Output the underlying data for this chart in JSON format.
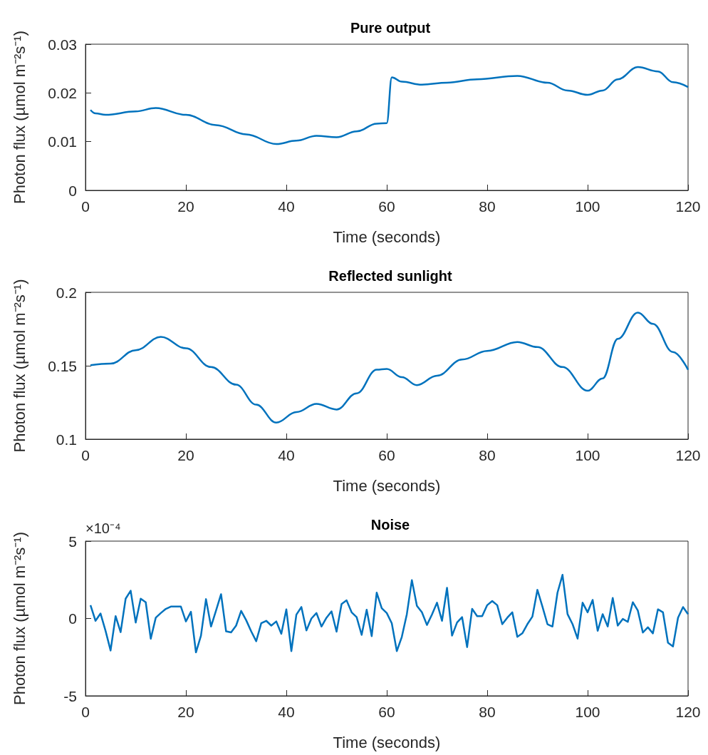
{
  "chart_data": [
    {
      "type": "line",
      "title": "Pure output",
      "xlabel": "Time (seconds)",
      "ylabel": "Photon flux (µmol m⁻²s⁻¹)",
      "color": "#0072bd",
      "grid": false,
      "marker": "none",
      "xlim": [
        0,
        120
      ],
      "xticks": [
        0,
        20,
        40,
        60,
        80,
        100,
        120
      ],
      "ylim": [
        0,
        0.03
      ],
      "yticks": [
        0,
        0.01,
        0.02,
        0.03
      ],
      "x": [
        1,
        2,
        4,
        10,
        14,
        20,
        26,
        32,
        38,
        42,
        46,
        50,
        54,
        58,
        60,
        61,
        63,
        67,
        72,
        78,
        86,
        92,
        96,
        100,
        103,
        106,
        110,
        114,
        117,
        120
      ],
      "values": [
        0.0165,
        0.0158,
        0.0155,
        0.0162,
        0.0169,
        0.0155,
        0.0134,
        0.0115,
        0.0095,
        0.0102,
        0.0112,
        0.0109,
        0.0121,
        0.0137,
        0.0138,
        0.0232,
        0.0223,
        0.0217,
        0.0221,
        0.0228,
        0.0235,
        0.0221,
        0.0205,
        0.0196,
        0.0205,
        0.0228,
        0.0253,
        0.0244,
        0.0222,
        0.0212
      ]
    },
    {
      "type": "line",
      "title": "Reflected sunlight",
      "xlabel": "Time (seconds)",
      "ylabel": "Photon flux (µmol m⁻²s⁻¹)",
      "color": "#0072bd",
      "grid": false,
      "marker": "none",
      "xlim": [
        0,
        120
      ],
      "xticks": [
        0,
        20,
        40,
        60,
        80,
        100,
        120
      ],
      "ylim": [
        0.1,
        0.2
      ],
      "yticks": [
        0.1,
        0.15,
        0.2
      ],
      "x": [
        1,
        5,
        10,
        15,
        20,
        25,
        30,
        34,
        38,
        42,
        46,
        50,
        54,
        58,
        60,
        63,
        66,
        70,
        75,
        80,
        86,
        90,
        95,
        100,
        103,
        106,
        110,
        113,
        117,
        120
      ],
      "values": [
        0.1504,
        0.1514,
        0.1606,
        0.1696,
        0.1619,
        0.1491,
        0.1371,
        0.1235,
        0.1113,
        0.1184,
        0.124,
        0.1202,
        0.1312,
        0.1473,
        0.1478,
        0.1422,
        0.1368,
        0.1432,
        0.1542,
        0.1601,
        0.1662,
        0.1627,
        0.1491,
        0.133,
        0.1414,
        0.1683,
        0.1862,
        0.1785,
        0.1593,
        0.1473
      ]
    },
    {
      "type": "line",
      "title": "Noise",
      "xlabel": "Time (seconds)",
      "ylabel": "Photon flux (µmol m⁻²s⁻¹)",
      "annotations": [
        "×10⁻⁴"
      ],
      "color": "#0072bd",
      "grid": false,
      "marker": "none",
      "xlim": [
        0,
        120
      ],
      "xticks": [
        0,
        20,
        40,
        60,
        80,
        100,
        120
      ],
      "ylim": [
        -5,
        5
      ],
      "yticks": [
        -5,
        0,
        5
      ],
      "x": [
        1,
        2,
        3,
        4,
        5,
        6,
        7,
        8,
        9,
        10,
        11,
        12,
        13,
        14,
        15,
        16,
        17,
        18,
        19,
        20,
        21,
        22,
        23,
        24,
        25,
        26,
        27,
        28,
        29,
        30,
        31,
        32,
        33,
        34,
        35,
        36,
        37,
        38,
        39,
        40,
        41,
        42,
        43,
        44,
        45,
        46,
        47,
        48,
        49,
        50,
        51,
        52,
        53,
        54,
        55,
        56,
        57,
        58,
        59,
        60,
        61,
        62,
        63,
        64,
        65,
        66,
        67,
        68,
        69,
        70,
        71,
        72,
        73,
        74,
        75,
        76,
        77,
        78,
        79,
        80,
        81,
        82,
        83,
        84,
        85,
        86,
        87,
        88,
        89,
        90,
        91,
        92,
        93,
        94,
        95,
        96,
        97,
        98,
        99,
        100,
        101,
        102,
        103,
        104,
        105,
        106,
        107,
        108,
        109,
        110,
        111,
        112,
        113,
        114,
        115,
        116,
        117,
        118,
        119,
        120
      ],
      "values": [
        0.86,
        -0.15,
        0.32,
        -0.8,
        -2.07,
        0.15,
        -0.88,
        1.28,
        1.79,
        -0.26,
        1.28,
        1.05,
        -1.31,
        0.05,
        0.35,
        0.62,
        0.77,
        0.77,
        0.77,
        -0.19,
        0.43,
        -2.19,
        -1.11,
        1.25,
        -0.52,
        0.51,
        1.57,
        -0.83,
        -0.9,
        -0.46,
        0.49,
        -0.11,
        -0.83,
        -1.47,
        -0.31,
        -0.15,
        -0.46,
        -0.19,
        -0.99,
        0.59,
        -2.11,
        0.25,
        0.74,
        -0.77,
        0,
        0.35,
        -0.52,
        0.05,
        0.46,
        -0.85,
        0.93,
        1.17,
        0.4,
        0.09,
        -1.06,
        0.56,
        -1.14,
        1.67,
        0.66,
        0.35,
        -0.31,
        -2.11,
        -1.19,
        0.28,
        2.48,
        0.82,
        0.4,
        -0.42,
        0.25,
        1.02,
        -0.15,
        1.98,
        -1.11,
        -0.26,
        0.09,
        -1.85,
        0.62,
        0.15,
        0.15,
        0.86,
        1.13,
        0.86,
        -0.37,
        0.05,
        0.4,
        -1.19,
        -0.96,
        -0.37,
        0.12,
        1.85,
        0.77,
        -0.37,
        -0.52,
        1.67,
        2.82,
        0.28,
        -0.37,
        -1.3,
        1.02,
        0.4,
        1.2,
        -0.8,
        0.28,
        -0.52,
        1.33,
        -0.46,
        -0.03,
        -0.22,
        1.05,
        0.51,
        -0.91,
        -0.57,
        -0.96,
        0.59,
        0.4,
        -1.57,
        -1.81,
        0.05,
        0.74,
        0.28
      ]
    }
  ]
}
